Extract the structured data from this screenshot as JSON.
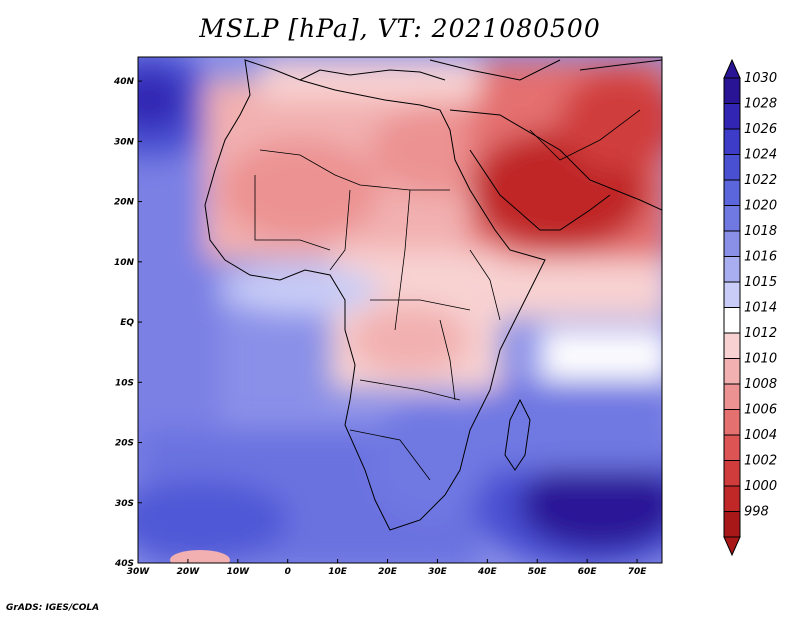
{
  "title": "MSLP [hPa], VT: 2021080500",
  "footer": "GrADS: IGES/COLA",
  "map": {
    "lon_ticks": [
      "30W",
      "20W",
      "10W",
      "0",
      "10E",
      "20E",
      "30E",
      "40E",
      "50E",
      "60E",
      "70E"
    ],
    "lat_ticks": [
      "40N",
      "30N",
      "20N",
      "10N",
      "EQ",
      "10S",
      "20S",
      "30S",
      "40S"
    ],
    "lon_range": [
      -30,
      75
    ],
    "lat_range": [
      -40,
      44
    ]
  },
  "colorbar": {
    "labels": [
      "1030",
      "1028",
      "1026",
      "1024",
      "1022",
      "1020",
      "1018",
      "1016",
      "1015",
      "1014",
      "1012",
      "1010",
      "1008",
      "1006",
      "1004",
      "1002",
      "1000",
      "998"
    ],
    "colors": [
      "#2a1496",
      "#3225b4",
      "#3c3cc8",
      "#4a50d2",
      "#5c66dc",
      "#7078e2",
      "#8a90e8",
      "#a8aef0",
      "#c8ccf6",
      "#ffffff",
      "#f8d2d2",
      "#f2b0b0",
      "#ec9292",
      "#e47070",
      "#dc5454",
      "#d03c3c",
      "#c02828",
      "#a81818"
    ]
  }
}
